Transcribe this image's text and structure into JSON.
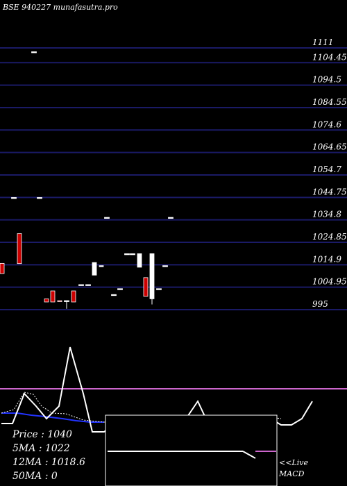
{
  "chart_data": {
    "type": "candlestick",
    "title": "BSE 940227 munafasutra.pro",
    "y_ticks": [
      1111,
      1104.45,
      1094.5,
      1084.55,
      1074.6,
      1064.65,
      1054.7,
      1044.75,
      1034.8,
      1024.85,
      1014.9,
      1004.95,
      995
    ],
    "ylim": [
      995,
      1111
    ],
    "colors": {
      "background": "#000000",
      "grid": "#1a1a66",
      "up": "#ffffff",
      "down": "#cc0000",
      "macd_line": "#cc66cc"
    },
    "candles": [
      {
        "x": 3,
        "open": 1015.5,
        "close": 1011.0,
        "high": 1015.5,
        "low": 1011.0,
        "dir": "down"
      },
      {
        "x": 20,
        "open": 1044.7,
        "close": 1044.7,
        "high": 1044.7,
        "low": 1044.7,
        "dir": "flat"
      },
      {
        "x": 28,
        "open": 1028.7,
        "close": 1015.4,
        "high": 1028.7,
        "low": 1015.4,
        "dir": "down"
      },
      {
        "x": 49,
        "open": 1109.3,
        "close": 1109.3,
        "high": 1109.3,
        "low": 1109.3,
        "dir": "flat"
      },
      {
        "x": 57,
        "open": 1044.7,
        "close": 1044.7,
        "high": 1044.7,
        "low": 1044.7,
        "dir": "flat"
      },
      {
        "x": 67,
        "open": 999.8,
        "close": 998.4,
        "high": 999.8,
        "low": 998.4,
        "dir": "down"
      },
      {
        "x": 76,
        "open": 1003.3,
        "close": 998.4,
        "high": 1003.3,
        "low": 998.4,
        "dir": "down"
      },
      {
        "x": 86,
        "open": 999.0,
        "close": 999.0,
        "high": 999.0,
        "low": 999.0,
        "dir": "down"
      },
      {
        "x": 96,
        "open": 999.0,
        "close": 999.0,
        "high": 999.0,
        "low": 995.4,
        "dir": "flat"
      },
      {
        "x": 106,
        "open": 1003.3,
        "close": 998.4,
        "high": 1003.3,
        "low": 998.4,
        "dir": "down"
      },
      {
        "x": 117,
        "open": 1006.1,
        "close": 1006.1,
        "high": 1006.1,
        "low": 1006.1,
        "dir": "flat"
      },
      {
        "x": 127,
        "open": 1006.1,
        "close": 1006.1,
        "high": 1006.1,
        "low": 1006.1,
        "dir": "flat"
      },
      {
        "x": 136,
        "open": 1010.3,
        "close": 1015.9,
        "high": 1015.9,
        "low": 1010.3,
        "dir": "up"
      },
      {
        "x": 146,
        "open": 1014.5,
        "close": 1014.5,
        "high": 1014.5,
        "low": 1014.5,
        "dir": "up"
      },
      {
        "x": 154,
        "open": 1035.9,
        "close": 1035.9,
        "high": 1035.9,
        "low": 1035.9,
        "dir": "flat"
      },
      {
        "x": 164,
        "open": 1001.7,
        "close": 1001.7,
        "high": 1001.7,
        "low": 1001.7,
        "dir": "flat"
      },
      {
        "x": 173,
        "open": 1004.3,
        "close": 1004.3,
        "high": 1004.3,
        "low": 1004.3,
        "dir": "flat"
      },
      {
        "x": 183,
        "open": 1019.8,
        "close": 1019.8,
        "high": 1019.8,
        "low": 1019.8,
        "dir": "flat"
      },
      {
        "x": 191,
        "open": 1019.8,
        "close": 1019.8,
        "high": 1019.8,
        "low": 1019.8,
        "dir": "flat"
      },
      {
        "x": 201,
        "open": 1019.8,
        "close": 1013.8,
        "high": 1019.8,
        "low": 1013.8,
        "dir": "up"
      },
      {
        "x": 210,
        "open": 1009.2,
        "close": 1000.9,
        "high": 1009.2,
        "low": 1000.9,
        "dir": "down"
      },
      {
        "x": 219,
        "open": 1019.8,
        "close": 999.8,
        "high": 1019.8,
        "low": 997.3,
        "dir": "up"
      },
      {
        "x": 229,
        "open": 1004.3,
        "close": 1004.3,
        "high": 1004.3,
        "low": 1004.3,
        "dir": "flat"
      },
      {
        "x": 238,
        "open": 1014.5,
        "close": 1014.5,
        "high": 1014.5,
        "low": 1014.5,
        "dir": "flat"
      },
      {
        "x": 246,
        "open": 1035.9,
        "close": 1035.9,
        "high": 1035.9,
        "low": 1035.9,
        "dir": "flat"
      }
    ],
    "indicator_panel": {
      "white_line": [
        [
          2,
          610
        ],
        [
          18,
          610
        ],
        [
          35,
          567
        ],
        [
          52,
          585
        ],
        [
          67,
          603
        ],
        [
          85,
          585
        ],
        [
          101,
          500
        ],
        [
          120,
          567
        ],
        [
          133,
          622
        ],
        [
          150,
          622
        ],
        [
          165,
          610
        ],
        [
          185,
          620
        ],
        [
          200,
          622
        ],
        [
          215,
          600
        ],
        [
          230,
          610
        ],
        [
          250,
          612
        ],
        [
          268,
          603
        ],
        [
          285,
          578
        ],
        [
          300,
          610
        ],
        [
          318,
          612
        ],
        [
          335,
          612
        ],
        [
          352,
          605
        ],
        [
          370,
          612
        ],
        [
          390,
          603
        ],
        [
          405,
          612
        ],
        [
          420,
          612
        ],
        [
          435,
          603
        ],
        [
          450,
          578
        ]
      ],
      "dotted_line": [
        [
          2,
          595
        ],
        [
          20,
          590
        ],
        [
          35,
          565
        ],
        [
          48,
          568
        ],
        [
          60,
          585
        ],
        [
          75,
          595
        ],
        [
          95,
          596
        ],
        [
          120,
          605
        ],
        [
          150,
          608
        ],
        [
          190,
          606
        ],
        [
          220,
          600
        ],
        [
          260,
          605
        ],
        [
          300,
          605
        ],
        [
          350,
          603
        ],
        [
          380,
          600
        ],
        [
          405,
          603
        ]
      ],
      "blue_line": [
        [
          2,
          595
        ],
        [
          25,
          595
        ],
        [
          45,
          598
        ],
        [
          65,
          600
        ],
        [
          90,
          603
        ],
        [
          110,
          606
        ],
        [
          130,
          608
        ],
        [
          150,
          608
        ]
      ],
      "purple_level_y": 560
    },
    "stats": {
      "price_label": "Price   : 1040",
      "ma5_label": "5MA : 1022",
      "ma12_label": "12MA : 1018.6",
      "ma50_label": "50MA : 0"
    },
    "macd_panel": {
      "label": "<<Live MACD",
      "label_line1": "<<Live",
      "label_line2": "MACD",
      "zero_line": [
        [
          155,
          650
        ],
        [
          350,
          650
        ]
      ],
      "drop_line": [
        [
          350,
          650
        ],
        [
          368,
          660
        ]
      ],
      "purple_segment": [
        [
          368,
          650
        ],
        [
          398,
          650
        ]
      ]
    }
  }
}
